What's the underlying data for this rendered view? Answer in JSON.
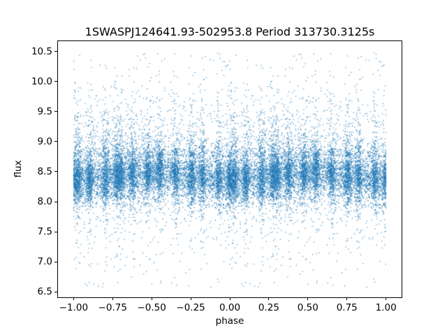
{
  "chart_data": {
    "type": "scatter",
    "title": "1SWASPJ124641.93-502953.8 Period 313730.3125s",
    "xlabel": "phase",
    "ylabel": "flux",
    "xlim": [
      -1.1,
      1.1
    ],
    "ylim": [
      6.41,
      10.67
    ],
    "xticks": [
      -1.0,
      -0.75,
      -0.5,
      -0.25,
      0.0,
      0.25,
      0.5,
      0.75,
      1.0
    ],
    "xtick_labels": [
      "−1.00",
      "−0.75",
      "−0.50",
      "−0.25",
      "0.00",
      "0.25",
      "0.50",
      "0.75",
      "1.00"
    ],
    "yticks": [
      6.5,
      7.0,
      7.5,
      8.0,
      8.5,
      9.0,
      9.5,
      10.0,
      10.5
    ],
    "ytick_labels": [
      "6.5",
      "7.0",
      "7.5",
      "8.0",
      "8.5",
      "9.0",
      "9.5",
      "10.0",
      "10.5"
    ],
    "grid": false,
    "legend": null,
    "marker_color": "#1f77b4",
    "marker_alpha": 0.66,
    "marker_size_px": 1.4,
    "generator": {
      "seed": 20,
      "unique_points": 11000,
      "duplicate_offset": 1.0,
      "phase_range": [
        0,
        1
      ],
      "streaks": {
        "step": 0.2754,
        "count": 13,
        "width": 0.012,
        "fraction": 0.5
      },
      "band": {
        "mean": 8.43,
        "sigma": 0.2,
        "fraction": 0.795,
        "modulation_amp": 0.05,
        "modulation_phase": 0.0
      },
      "upper_tail": {
        "start": 8.75,
        "scale": 0.42,
        "fraction": 0.13,
        "max": 10.48
      },
      "lower_tail": {
        "start": 8.15,
        "scale": 0.38,
        "fraction": 0.075,
        "min": 6.58
      }
    }
  }
}
